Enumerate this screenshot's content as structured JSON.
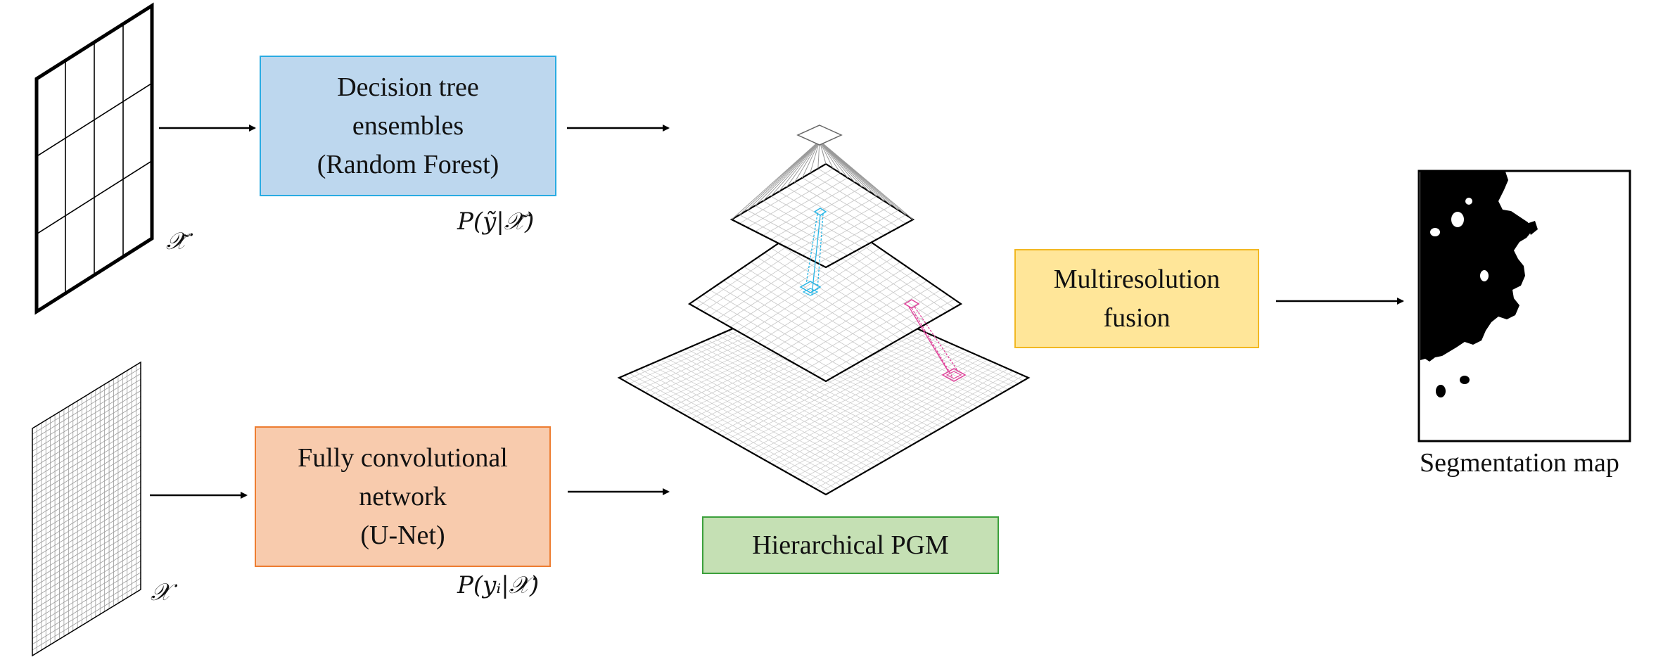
{
  "boxes": {
    "random_forest": {
      "lines": [
        "Decision tree",
        "ensembles",
        "(Random Forest)"
      ]
    },
    "fcn": {
      "lines": [
        "Fully convolutional",
        "network",
        "(U-Net)"
      ]
    },
    "fusion": {
      "lines": [
        "Multiresolution",
        "fusion"
      ]
    },
    "pgm": {
      "label": "Hierarchical PGM"
    }
  },
  "math": {
    "x_tilde": "𝒳̃",
    "x": "𝒳",
    "p_rf": "P(ỹ|𝒳̃)",
    "p_fcn": "P(yᵢ|𝒳)"
  },
  "segmentation": {
    "label": "Segmentation map"
  },
  "colors": {
    "rf_fill": "#bdd7ee",
    "rf_border": "#29abe2",
    "fcn_fill": "#f8cbad",
    "fcn_border": "#ed7d31",
    "fusion_fill": "#ffe699",
    "fusion_border": "#f2b822",
    "pgm_fill": "#c5e0b4",
    "pgm_border": "#3ca03c",
    "cyan_path": "#29b6e6",
    "magenta_path": "#e0429a"
  }
}
